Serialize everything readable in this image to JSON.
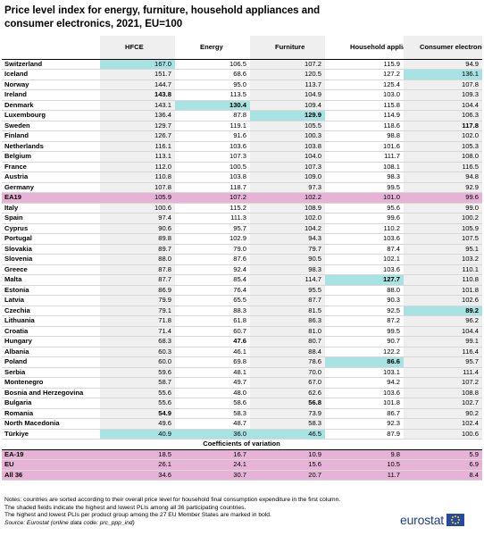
{
  "title": "Price level index for energy, furniture, household appliances and consumer electronics, 2021, EU=100",
  "headers": [
    "",
    "HFCE",
    "Energy",
    "Furniture",
    "Household appliances",
    "Consumer electronics"
  ],
  "rows": [
    {
      "name": "Switzerland",
      "v": [
        "167.0",
        "106.5",
        "107.2",
        "115.9",
        "94.9"
      ],
      "hl": [
        0
      ],
      "bold": [],
      "agg": false
    },
    {
      "name": "Iceland",
      "v": [
        "151.7",
        "68.6",
        "120.5",
        "127.2",
        "136.1"
      ],
      "hl": [
        4
      ],
      "bold": [],
      "agg": false
    },
    {
      "name": "Norway",
      "v": [
        "144.7",
        "95.0",
        "113.7",
        "125.4",
        "107.8"
      ],
      "hl": [],
      "bold": [],
      "agg": false
    },
    {
      "name": "Ireland",
      "v": [
        "143.8",
        "113.5",
        "104.9",
        "103.0",
        "109.3"
      ],
      "hl": [],
      "bold": [
        0
      ],
      "agg": false
    },
    {
      "name": "Denmark",
      "v": [
        "143.1",
        "130.4",
        "109.4",
        "115.8",
        "104.4"
      ],
      "hl": [
        1
      ],
      "bold": [
        1
      ],
      "agg": false
    },
    {
      "name": "Luxembourg",
      "v": [
        "136.4",
        "87.8",
        "129.9",
        "114.9",
        "106.3"
      ],
      "hl": [
        2
      ],
      "bold": [
        2
      ],
      "agg": false
    },
    {
      "name": "Sweden",
      "v": [
        "129.7",
        "119.1",
        "105.5",
        "118.6",
        "117.8"
      ],
      "hl": [],
      "bold": [
        4
      ],
      "agg": false
    },
    {
      "name": "Finland",
      "v": [
        "126.7",
        "91.6",
        "100.3",
        "98.8",
        "102.0"
      ],
      "hl": [],
      "bold": [],
      "agg": false
    },
    {
      "name": "Netherlands",
      "v": [
        "116.1",
        "103.6",
        "103.8",
        "101.6",
        "105.3"
      ],
      "hl": [],
      "bold": [],
      "agg": false
    },
    {
      "name": "Belgium",
      "v": [
        "113.1",
        "107.3",
        "104.0",
        "111.7",
        "108.0"
      ],
      "hl": [],
      "bold": [],
      "agg": false
    },
    {
      "name": "France",
      "v": [
        "112.0",
        "100.5",
        "107.3",
        "108.1",
        "116.5"
      ],
      "hl": [],
      "bold": [],
      "agg": false
    },
    {
      "name": "Austria",
      "v": [
        "110.8",
        "103.8",
        "109.0",
        "98.3",
        "94.8"
      ],
      "hl": [],
      "bold": [],
      "agg": false
    },
    {
      "name": "Germany",
      "v": [
        "107.8",
        "118.7",
        "97.3",
        "99.5",
        "92.9"
      ],
      "hl": [],
      "bold": [],
      "agg": false
    },
    {
      "name": "EA19",
      "v": [
        "105.9",
        "107.2",
        "102.2",
        "101.0",
        "99.6"
      ],
      "hl": [],
      "bold": [],
      "agg": true
    },
    {
      "name": "Italy",
      "v": [
        "100.6",
        "115.2",
        "108.9",
        "95.6",
        "99.0"
      ],
      "hl": [],
      "bold": [],
      "agg": false
    },
    {
      "name": "Spain",
      "v": [
        "97.4",
        "111.3",
        "102.0",
        "99.6",
        "100.2"
      ],
      "hl": [],
      "bold": [],
      "agg": false
    },
    {
      "name": "Cyprus",
      "v": [
        "90.6",
        "95.7",
        "104.2",
        "110.2",
        "105.9"
      ],
      "hl": [],
      "bold": [],
      "agg": false
    },
    {
      "name": "Portugal",
      "v": [
        "89.8",
        "102.9",
        "94.3",
        "103.6",
        "107.5"
      ],
      "hl": [],
      "bold": [],
      "agg": false
    },
    {
      "name": "Slovakia",
      "v": [
        "89.7",
        "79.0",
        "79.7",
        "87.4",
        "95.1"
      ],
      "hl": [],
      "bold": [],
      "agg": false
    },
    {
      "name": "Slovenia",
      "v": [
        "88.0",
        "87.6",
        "90.5",
        "102.1",
        "103.2"
      ],
      "hl": [],
      "bold": [],
      "agg": false
    },
    {
      "name": "Greece",
      "v": [
        "87.8",
        "92.4",
        "98.3",
        "103.6",
        "110.1"
      ],
      "hl": [],
      "bold": [],
      "agg": false
    },
    {
      "name": "Malta",
      "v": [
        "87.7",
        "85.4",
        "114.7",
        "127.7",
        "110.8"
      ],
      "hl": [
        3
      ],
      "bold": [
        3
      ],
      "agg": false
    },
    {
      "name": "Estonia",
      "v": [
        "86.9",
        "76.4",
        "95.5",
        "88.0",
        "101.8"
      ],
      "hl": [],
      "bold": [],
      "agg": false
    },
    {
      "name": "Latvia",
      "v": [
        "79.9",
        "65.5",
        "87.7",
        "90.3",
        "102.6"
      ],
      "hl": [],
      "bold": [],
      "agg": false
    },
    {
      "name": "Czechia",
      "v": [
        "79.1",
        "88.3",
        "81.5",
        "92.5",
        "89.2"
      ],
      "hl": [
        4
      ],
      "bold": [
        4
      ],
      "agg": false
    },
    {
      "name": "Lithuania",
      "v": [
        "71.8",
        "61.8",
        "86.3",
        "87.2",
        "96.2"
      ],
      "hl": [],
      "bold": [],
      "agg": false
    },
    {
      "name": "Croatia",
      "v": [
        "71.4",
        "60.7",
        "81.0",
        "99.5",
        "104.4"
      ],
      "hl": [],
      "bold": [],
      "agg": false
    },
    {
      "name": "Hungary",
      "v": [
        "68.3",
        "47.6",
        "80.7",
        "90.7",
        "99.1"
      ],
      "hl": [],
      "bold": [
        1
      ],
      "agg": false
    },
    {
      "name": "Albania",
      "v": [
        "60.3",
        "46.1",
        "88.4",
        "122.2",
        "116.4"
      ],
      "hl": [],
      "bold": [],
      "agg": false
    },
    {
      "name": "Poland",
      "v": [
        "60.0",
        "69.8",
        "78.6",
        "86.6",
        "95.7"
      ],
      "hl": [
        3
      ],
      "bold": [
        3
      ],
      "agg": false
    },
    {
      "name": "Serbia",
      "v": [
        "59.6",
        "48.1",
        "70.0",
        "103.1",
        "111.4"
      ],
      "hl": [],
      "bold": [],
      "agg": false
    },
    {
      "name": "Montenegro",
      "v": [
        "58.7",
        "49.7",
        "67.0",
        "94.2",
        "107.2"
      ],
      "hl": [],
      "bold": [],
      "agg": false
    },
    {
      "name": "Bosnia and Herzegovina",
      "v": [
        "55.6",
        "48.0",
        "62.6",
        "103.6",
        "108.8"
      ],
      "hl": [],
      "bold": [],
      "agg": false
    },
    {
      "name": "Bulgaria",
      "v": [
        "55.6",
        "58.6",
        "56.8",
        "101.8",
        "102.7"
      ],
      "hl": [],
      "bold": [
        2
      ],
      "agg": false
    },
    {
      "name": "Romania",
      "v": [
        "54.9",
        "58.3",
        "73.9",
        "86.7",
        "90.2"
      ],
      "hl": [],
      "bold": [
        0
      ],
      "agg": false
    },
    {
      "name": "North Macedonia",
      "v": [
        "49.6",
        "48.7",
        "58.3",
        "92.3",
        "102.4"
      ],
      "hl": [],
      "bold": [],
      "agg": false
    },
    {
      "name": "Türkiye",
      "v": [
        "40.9",
        "36.0",
        "46.5",
        "87.9",
        "100.6"
      ],
      "hl": [
        0,
        1,
        2
      ],
      "bold": [],
      "agg": false
    }
  ],
  "cv_header": "Coefficients of variation",
  "cv_rows": [
    {
      "name": "EA-19",
      "v": [
        "18.5",
        "16.7",
        "10.9",
        "9.8",
        "5.9"
      ]
    },
    {
      "name": "EU",
      "v": [
        "26.1",
        "24.1",
        "15.6",
        "10.5",
        "6.9"
      ]
    },
    {
      "name": "All 36",
      "v": [
        "34.6",
        "30.7",
        "20.7",
        "11.7",
        "8.4"
      ]
    }
  ],
  "notes": [
    "Notes: countries are sorted according to their overall price level for household final consumption expenditure in the first column.",
    "The shaded fields indicate the highest and lowest PLIs among all 36 participating countries.",
    "The highest and lowest PLIs per product group among the 27 EU Member States are marked in bold."
  ],
  "source": "Source: Eurostat (online data code: prc_ppp_ind)",
  "logo_text": "eurostat",
  "colors": {
    "aggregate_row": "#e6b3d6",
    "highlight": "#a8e3e3",
    "shaded_column": "#efefef",
    "logo_blue": "#1e3f8a"
  }
}
